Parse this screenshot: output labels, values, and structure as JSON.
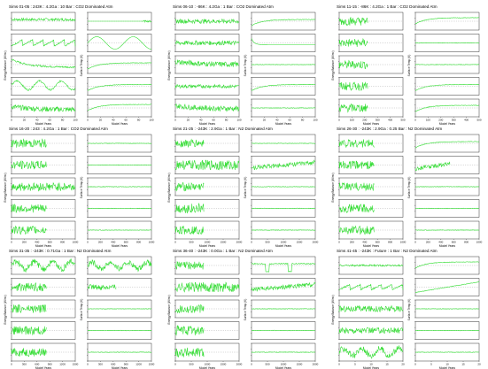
{
  "chart_data": [
    {
      "type": "line",
      "title": "Sims 01-05 : 243K : 4.2Ga : 10 Bar : CO2 Dominated Atm",
      "xlabel": "Model Years",
      "ylabel_left": "Energy Balance (W/m²)",
      "ylabel_right": "Surface Temp (K)",
      "x_ticks": [
        "0",
        "20",
        "40",
        "60",
        "80",
        "100"
      ],
      "left_series": [
        {
          "kind": "noisy-flat",
          "level": 0.6,
          "amp": 0.15
        },
        {
          "kind": "sawtooth",
          "level": 0.5,
          "amp": 0.35
        },
        {
          "kind": "decay",
          "level": 0.35,
          "amp": 0.45
        },
        {
          "kind": "wavy",
          "level": 0.55,
          "amp": 0.25
        },
        {
          "kind": "noisy-decay",
          "level": 0.4,
          "amp": 0.3
        }
      ],
      "right_series": [
        {
          "kind": "flat-end",
          "level": 0.5
        },
        {
          "kind": "sine",
          "level": 0.5,
          "amp": 0.35
        },
        {
          "kind": "rise",
          "level": 0.6
        },
        {
          "kind": "rise",
          "level": 0.6
        },
        {
          "kind": "rise",
          "level": 0.7
        }
      ]
    },
    {
      "type": "line",
      "title": "Sims 06-10 : -86K : 4.2Ga : 1 Bar : CO2 Dominated Atm",
      "xlabel": "Model Years",
      "ylabel_left": "Energy Balance (W/m²)",
      "ylabel_right": "Surface Temp (K)",
      "x_ticks": [
        "0",
        "20",
        "40",
        "60",
        "80",
        "100"
      ],
      "left_series": [
        {
          "kind": "noisy-flat",
          "level": 0.5,
          "amp": 0.25
        },
        {
          "kind": "noisy-flat",
          "level": 0.5,
          "amp": 0.25
        },
        {
          "kind": "noisy-decay",
          "level": 0.5,
          "amp": 0.3
        },
        {
          "kind": "noisy-flat",
          "level": 0.5,
          "amp": 0.2
        },
        {
          "kind": "noisy-decay",
          "level": 0.45,
          "amp": 0.3
        }
      ],
      "right_series": [
        {
          "kind": "rise",
          "level": 0.6
        },
        {
          "kind": "drop",
          "level": 0.4
        },
        {
          "kind": "flat",
          "level": 0.5
        },
        {
          "kind": "rise",
          "level": 0.6
        },
        {
          "kind": "flat",
          "level": 0.5
        }
      ]
    },
    {
      "type": "line",
      "title": "Sims 11-15 : -86K : 4.2Ga : 1 Bar : CO2 Dominated Atm",
      "xlabel": "Model Years",
      "ylabel_left": "Energy Balance (W/m²)",
      "ylabel_right": "Surface Temp (K)",
      "x_ticks": [
        "0",
        "100",
        "200",
        "300",
        "400",
        "500"
      ],
      "left_series": [
        {
          "kind": "noisy-short",
          "level": 0.5,
          "amp": 0.3
        },
        {
          "kind": "noisy-short",
          "level": 0.5,
          "amp": 0.3
        },
        {
          "kind": "noisy-short",
          "level": 0.5,
          "amp": 0.3
        },
        {
          "kind": "noisy-short",
          "level": 0.5,
          "amp": 0.3
        },
        {
          "kind": "noisy-short",
          "level": 0.5,
          "amp": 0.3
        }
      ],
      "right_series": [
        {
          "kind": "rise",
          "level": 0.7
        },
        {
          "kind": "flat",
          "level": 0.5
        },
        {
          "kind": "flat",
          "level": 0.5
        },
        {
          "kind": "rise",
          "level": 0.6
        },
        {
          "kind": "rise",
          "level": 0.65
        }
      ]
    },
    {
      "type": "line",
      "title": "Sims 16-20 : 243 : 4.2Ga : 1 Bar : CO2 Dominated Atm",
      "xlabel": "Model Years",
      "ylabel_left": "Energy Balance (W/m²)",
      "ylabel_right": "Surface Temp (K)",
      "x_ticks": [
        "0",
        "200",
        "400",
        "600",
        "800",
        "1000"
      ],
      "left_series": [
        {
          "kind": "noisy-half",
          "level": 0.5,
          "amp": 0.3
        },
        {
          "kind": "noisy-half",
          "level": 0.5,
          "amp": 0.3
        },
        {
          "kind": "noisy-full",
          "level": 0.5,
          "amp": 0.3
        },
        {
          "kind": "noisy-half",
          "level": 0.5,
          "amp": 0.3
        },
        {
          "kind": "noisy-half",
          "level": 0.5,
          "amp": 0.3
        }
      ],
      "right_series": [
        {
          "kind": "flat",
          "level": 0.5
        },
        {
          "kind": "flat",
          "level": 0.5
        },
        {
          "kind": "flat",
          "level": 0.5
        },
        {
          "kind": "flat",
          "level": 0.5
        },
        {
          "kind": "flat",
          "level": 0.5
        }
      ]
    },
    {
      "type": "line",
      "title": "Sims 21-25 : -243K : 2.9Ga : 1 Bar : N2 Dominated Atm",
      "xlabel": "Model Years",
      "ylabel_left": "Energy Balance (W/m²)",
      "ylabel_right": "Surface Temp (K)",
      "x_ticks": [
        "0",
        "500",
        "1000",
        "1500",
        "2000"
      ],
      "left_series": [
        {
          "kind": "noisy-short",
          "level": 0.5,
          "amp": 0.3
        },
        {
          "kind": "noisy-full",
          "level": 0.5,
          "amp": 0.35
        },
        {
          "kind": "noisy-short",
          "level": 0.5,
          "amp": 0.3
        },
        {
          "kind": "noisy-short",
          "level": 0.5,
          "amp": 0.35
        },
        {
          "kind": "noisy-short",
          "level": 0.5,
          "amp": 0.3
        }
      ],
      "right_series": [
        {
          "kind": "flat",
          "level": 0.5
        },
        {
          "kind": "noisy-rise",
          "level": 0.5
        },
        {
          "kind": "flat",
          "level": 0.5
        },
        {
          "kind": "flat",
          "level": 0.5
        },
        {
          "kind": "flat",
          "level": 0.5
        }
      ]
    },
    {
      "type": "line",
      "title": "Sims 26-30 : -243K : 2.9Ga : 0.25 Bar : N2 Dominated Atm",
      "xlabel": "Model Years",
      "ylabel_left": "Energy Balance (W/m²)",
      "ylabel_right": "Surface Temp (K)",
      "x_ticks": [
        "0",
        "200",
        "400",
        "600",
        "800",
        "1000"
      ],
      "left_series": [
        {
          "kind": "noisy-half",
          "level": 0.5,
          "amp": 0.3
        },
        {
          "kind": "noisy-half",
          "level": 0.5,
          "amp": 0.3
        },
        {
          "kind": "noisy-half",
          "level": 0.5,
          "amp": 0.3
        },
        {
          "kind": "noisy-half",
          "level": 0.5,
          "amp": 0.3
        },
        {
          "kind": "noisy-half",
          "level": 0.5,
          "amp": 0.3
        }
      ],
      "right_series": [
        {
          "kind": "rise",
          "level": 0.6
        },
        {
          "kind": "noisy-half-rise",
          "level": 0.5
        },
        {
          "kind": "flat",
          "level": 0.5
        },
        {
          "kind": "flat",
          "level": 0.5
        },
        {
          "kind": "flat",
          "level": 0.5
        }
      ]
    },
    {
      "type": "line",
      "title": "Sims 31-35 : -243K : 0.71Ga : 1 Bar : N2 Dominated Atm",
      "xlabel": "Model Years",
      "ylabel_left": "Energy Balance (W/m²)",
      "ylabel_right": "Surface Temp (K)",
      "x_ticks": [
        "0",
        "300",
        "600",
        "900",
        "1200",
        "1500"
      ],
      "left_series": [
        {
          "kind": "wavy-noisy",
          "level": 0.5,
          "amp": 0.35
        },
        {
          "kind": "noisy-half",
          "level": 0.5,
          "amp": 0.3
        },
        {
          "kind": "noisy-half",
          "level": 0.5,
          "amp": 0.3
        },
        {
          "kind": "noisy-half",
          "level": 0.5,
          "amp": 0.3
        },
        {
          "kind": "noisy-half",
          "level": 0.5,
          "amp": 0.3
        }
      ],
      "right_series": [
        {
          "kind": "wavy-noisy",
          "level": 0.5,
          "amp": 0.3
        },
        {
          "kind": "noisy-short",
          "level": 0.5,
          "amp": 0.2
        },
        {
          "kind": "flat",
          "level": 0.5
        },
        {
          "kind": "flat",
          "level": 0.5
        },
        {
          "kind": "flat",
          "level": 0.5
        }
      ]
    },
    {
      "type": "line",
      "title": "Sims 36-40 : -243K : 0.0Ga : 1 Bar : N2 Dominated Atm",
      "xlabel": "Model Years",
      "ylabel_left": "Energy Balance (W/m²)",
      "ylabel_right": "Surface Temp (K)",
      "x_ticks": [
        "0",
        "500",
        "1000",
        "1500",
        "2000"
      ],
      "left_series": [
        {
          "kind": "noisy-short",
          "level": 0.5,
          "amp": 0.3
        },
        {
          "kind": "noisy-full",
          "level": 0.5,
          "amp": 0.35
        },
        {
          "kind": "noisy-short",
          "level": 0.5,
          "amp": 0.3
        },
        {
          "kind": "noisy-short",
          "level": 0.5,
          "amp": 0.35
        },
        {
          "kind": "noisy-short",
          "level": 0.5,
          "amp": 0.35
        }
      ],
      "right_series": [
        {
          "kind": "dips",
          "level": 0.6
        },
        {
          "kind": "noisy-rise",
          "level": 0.5
        },
        {
          "kind": "flat",
          "level": 0.5
        },
        {
          "kind": "flat",
          "level": 0.5
        },
        {
          "kind": "flat",
          "level": 0.5
        }
      ]
    },
    {
      "type": "line",
      "title": "Sims 41-45 : -243K : Future : 1 Bar : N2 Dominated Atm",
      "xlabel": "Model Years",
      "ylabel_left": "Energy Balance (W/m²)",
      "ylabel_right": "Surface Temp (K)",
      "x_ticks": [
        "0",
        "5",
        "10",
        "15",
        "20"
      ],
      "left_series": [
        {
          "kind": "noisy-flat",
          "level": 0.5,
          "amp": 0.1
        },
        {
          "kind": "sawtooth",
          "level": 0.5,
          "amp": 0.3
        },
        {
          "kind": "noisy-flat",
          "level": 0.5,
          "amp": 0.35
        },
        {
          "kind": "noisy-flat",
          "level": 0.5,
          "amp": 0.35
        },
        {
          "kind": "wavy-noisy",
          "level": 0.5,
          "amp": 0.35
        }
      ],
      "right_series": [
        {
          "kind": "rise",
          "level": 0.7
        },
        {
          "kind": "ramp",
          "level": 0.5
        },
        {
          "kind": "flat",
          "level": 0.5
        },
        {
          "kind": "flat",
          "level": 0.5
        },
        {
          "kind": "flat",
          "level": 0.5
        }
      ]
    }
  ],
  "colors": {
    "series": "#33dd33",
    "axis": "#000000",
    "dash": "#888888"
  }
}
